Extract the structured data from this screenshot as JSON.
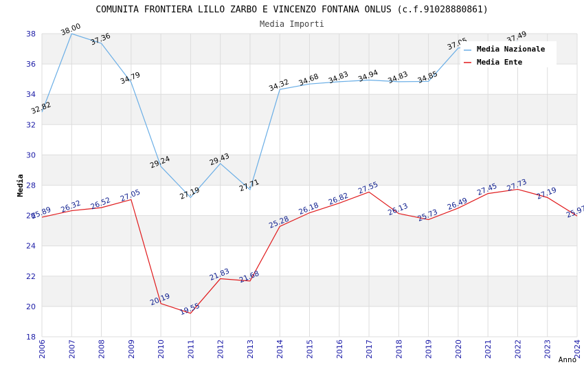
{
  "chart_data": {
    "type": "line",
    "title": "COMUNITA FRONTIERA LILLO ZARBO E VINCENZO FONTANA ONLUS (c.f.91028880861)",
    "subtitle": "Media Importi",
    "xlabel": "Anno",
    "ylabel": "Media",
    "x": [
      "2006",
      "2007",
      "2008",
      "2009",
      "2010",
      "2011",
      "2012",
      "2013",
      "2014",
      "2015",
      "2016",
      "2017",
      "2018",
      "2019",
      "2020",
      "2021",
      "2022",
      "2023",
      "2024"
    ],
    "ylim": [
      18,
      38
    ],
    "yticks": [
      "18",
      "20",
      "22",
      "24",
      "26",
      "28",
      "30",
      "32",
      "34",
      "36",
      "38"
    ],
    "grid": "horizontal bands",
    "legend_position": "top-right",
    "series": [
      {
        "name": "Media Nazionale",
        "color": "#6aaee6",
        "label_color": "#000000",
        "values": [
          32.82,
          38.0,
          37.36,
          34.79,
          29.24,
          27.19,
          29.43,
          27.71,
          34.32,
          34.68,
          34.83,
          34.94,
          34.83,
          34.85,
          37.05,
          null,
          37.49,
          null,
          null
        ],
        "labels": [
          "32.82",
          "38.00",
          "37.36",
          "34.79",
          "29.24",
          "27.19",
          "29.43",
          "27.71",
          "34.32",
          "34.68",
          "34.83",
          "34.94",
          "34.83",
          "34.85",
          "37.05",
          "",
          "37.49",
          "",
          ""
        ]
      },
      {
        "name": "Media Ente",
        "color": "#e0191b",
        "label_color": "#0a1a8c",
        "values": [
          25.89,
          26.32,
          26.52,
          27.05,
          20.19,
          19.55,
          21.83,
          21.68,
          25.28,
          26.18,
          26.82,
          27.55,
          26.13,
          25.73,
          26.49,
          27.45,
          27.73,
          27.19,
          25.97
        ],
        "labels": [
          "25.89",
          "26.32",
          "26.52",
          "27.05",
          "20.19",
          "19.55",
          "21.83",
          "21.68",
          "25.28",
          "26.18",
          "26.82",
          "27.55",
          "26.13",
          "25.73",
          "26.49",
          "27.45",
          "27.73",
          "27.19",
          "25.97"
        ]
      }
    ]
  }
}
